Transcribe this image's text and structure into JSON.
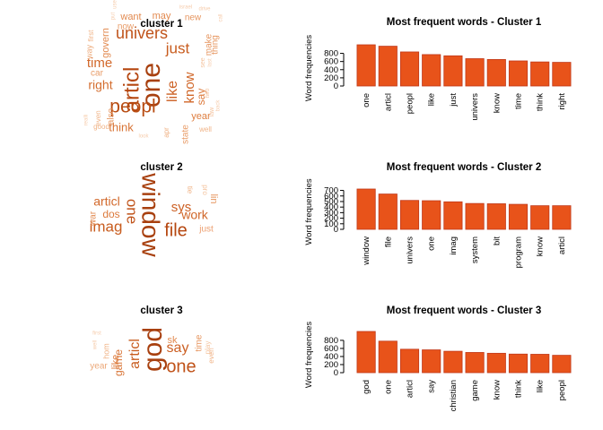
{
  "chart_data": [
    {
      "type": "wordcloud",
      "title": "cluster 1",
      "words": [
        {
          "text": "one",
          "size": 30,
          "color": "#a8400f",
          "rot": -90
        },
        {
          "text": "articl",
          "size": 24,
          "color": "#b5460f",
          "rot": -90
        },
        {
          "text": "peopl",
          "size": 21,
          "color": "#b84c12",
          "rot": 0
        },
        {
          "text": "univers",
          "size": 18,
          "color": "#c0531a",
          "rot": 0
        },
        {
          "text": "just",
          "size": 17,
          "color": "#c85c1e",
          "rot": 0
        },
        {
          "text": "like",
          "size": 16,
          "color": "#cc6024",
          "rot": -90
        },
        {
          "text": "know",
          "size": 15,
          "color": "#d06628",
          "rot": -90
        },
        {
          "text": "time",
          "size": 15,
          "color": "#d2692c",
          "rot": 0
        },
        {
          "text": "right",
          "size": 14,
          "color": "#d46e30",
          "rot": 0
        },
        {
          "text": "think",
          "size": 13,
          "color": "#d87436",
          "rot": 0
        },
        {
          "text": "say",
          "size": 12,
          "color": "#dc7a3c",
          "rot": -90
        },
        {
          "text": "year",
          "size": 11,
          "color": "#de7e40",
          "rot": 0
        },
        {
          "text": "govern",
          "size": 11,
          "color": "#e28a50",
          "rot": -90
        },
        {
          "text": "want",
          "size": 11,
          "color": "#e28a50",
          "rot": 0
        },
        {
          "text": "may",
          "size": 11,
          "color": "#e28a50",
          "rot": 0
        },
        {
          "text": "new",
          "size": 10,
          "color": "#e69660",
          "rot": 0
        },
        {
          "text": "make",
          "size": 10,
          "color": "#e69660",
          "rot": -90
        },
        {
          "text": "thing",
          "size": 10,
          "color": "#e69660",
          "rot": -90
        },
        {
          "text": "also",
          "size": 10,
          "color": "#e69660",
          "rot": -90
        },
        {
          "text": "car",
          "size": 10,
          "color": "#e89c68",
          "rot": 0
        },
        {
          "text": "state",
          "size": 10,
          "color": "#e89c68",
          "rot": -90
        },
        {
          "text": "now",
          "size": 10,
          "color": "#e89c68",
          "rot": 0
        },
        {
          "text": "way",
          "size": 9,
          "color": "#eca878",
          "rot": -90
        },
        {
          "text": "first",
          "size": 8,
          "color": "#f0b488",
          "rot": -90
        },
        {
          "text": "even",
          "size": 8,
          "color": "#f0b488",
          "rot": -90
        },
        {
          "text": "good",
          "size": 8,
          "color": "#f0b488",
          "rot": 0
        },
        {
          "text": "well",
          "size": 8,
          "color": "#f0b488",
          "rot": 0
        },
        {
          "text": "apr",
          "size": 8,
          "color": "#f0b488",
          "rot": -90
        },
        {
          "text": "see",
          "size": 7,
          "color": "#f4c4a0",
          "rot": -90
        },
        {
          "text": "two",
          "size": 7,
          "color": "#f4c4a0",
          "rot": -90
        },
        {
          "text": "law",
          "size": 7,
          "color": "#f4c4a0",
          "rot": -90
        },
        {
          "text": "back",
          "size": 6,
          "color": "#f6ccac",
          "rot": -90
        },
        {
          "text": "look",
          "size": 6,
          "color": "#f6ccac",
          "rot": 0
        },
        {
          "text": "realli",
          "size": 6,
          "color": "#f6ccac",
          "rot": -90
        },
        {
          "text": "israel",
          "size": 6,
          "color": "#f6ccac",
          "rot": 0
        },
        {
          "text": "put",
          "size": 6,
          "color": "#f6ccac",
          "rot": -90
        },
        {
          "text": "drive",
          "size": 6,
          "color": "#f6ccac",
          "rot": 0
        },
        {
          "text": "call",
          "size": 6,
          "color": "#f6ccac",
          "rot": -90
        },
        {
          "text": "use",
          "size": 6,
          "color": "#f6ccac",
          "rot": -90
        },
        {
          "text": "last",
          "size": 6,
          "color": "#f6ccac",
          "rot": -90
        }
      ]
    },
    {
      "type": "bar",
      "title": "Most frequent words - Cluster  1",
      "ylabel": "Word frequencies",
      "categories": [
        "one",
        "articl",
        "peopl",
        "like",
        "just",
        "univers",
        "know",
        "time",
        "think",
        "right"
      ],
      "values": [
        1010,
        975,
        835,
        770,
        740,
        670,
        650,
        615,
        590,
        580
      ],
      "yticks": [
        0,
        200,
        400,
        600,
        800
      ],
      "ylim": [
        0,
        1010
      ]
    },
    {
      "type": "wordcloud",
      "title": "cluster 2",
      "words": [
        {
          "text": "window",
          "size": 28,
          "color": "#a8400f",
          "rot": 90
        },
        {
          "text": "file",
          "size": 20,
          "color": "#b5460f",
          "rot": 0
        },
        {
          "text": "one",
          "size": 17,
          "color": "#c0531a",
          "rot": 90
        },
        {
          "text": "imag",
          "size": 17,
          "color": "#c85c1e",
          "rot": 0
        },
        {
          "text": "sys",
          "size": 15,
          "color": "#cc6024",
          "rot": 0
        },
        {
          "text": "work",
          "size": 14,
          "color": "#d06628",
          "rot": 0
        },
        {
          "text": "articl",
          "size": 14,
          "color": "#d2692c",
          "rot": 0
        },
        {
          "text": "dos",
          "size": 12,
          "color": "#dc7a3c",
          "rot": 0
        },
        {
          "text": "war",
          "size": 10,
          "color": "#e28a50",
          "rot": -90
        },
        {
          "text": "lin",
          "size": 11,
          "color": "#e69660",
          "rot": 90
        },
        {
          "text": "just",
          "size": 10,
          "color": "#ec9f70",
          "rot": 0
        },
        {
          "text": "tie",
          "size": 8,
          "color": "#f0b488",
          "rot": 90
        },
        {
          "text": "pro",
          "size": 8,
          "color": "#f4c4a0",
          "rot": 90
        }
      ]
    },
    {
      "type": "bar",
      "title": "Most frequent words - Cluster  2",
      "ylabel": "Word frequencies",
      "categories": [
        "window",
        "file",
        "univers",
        "one",
        "imag",
        "system",
        "bit",
        "program",
        "know",
        "articl"
      ],
      "values": [
        725,
        635,
        520,
        515,
        495,
        465,
        460,
        450,
        425,
        425
      ],
      "yticks": [
        0,
        100,
        200,
        300,
        400,
        500,
        600,
        700
      ],
      "ylim": [
        0,
        725
      ]
    },
    {
      "type": "wordcloud",
      "title": "cluster 3",
      "words": [
        {
          "text": "god",
          "size": 30,
          "color": "#a8400f",
          "rot": -90
        },
        {
          "text": "one",
          "size": 20,
          "color": "#c0531a",
          "rot": 0
        },
        {
          "text": "articl",
          "size": 16,
          "color": "#c85c1e",
          "rot": -90
        },
        {
          "text": "say",
          "size": 16,
          "color": "#cc6024",
          "rot": 0
        },
        {
          "text": "game",
          "size": 12,
          "color": "#d87436",
          "rot": -90
        },
        {
          "text": "like",
          "size": 11,
          "color": "#de7e40",
          "rot": -90
        },
        {
          "text": "sk",
          "size": 11,
          "color": "#e28a50",
          "rot": 0
        },
        {
          "text": "time",
          "size": 10,
          "color": "#e69660",
          "rot": -90
        },
        {
          "text": "year",
          "size": 10,
          "color": "#eca878",
          "rot": 0
        },
        {
          "text": "hom",
          "size": 9,
          "color": "#f0b488",
          "rot": -90
        },
        {
          "text": "even",
          "size": 8,
          "color": "#f0b488",
          "rot": -90
        },
        {
          "text": "play",
          "size": 8,
          "color": "#f4c4a0",
          "rot": -90
        },
        {
          "text": "first",
          "size": 6,
          "color": "#f6ccac",
          "rot": 0
        },
        {
          "text": "well",
          "size": 6,
          "color": "#f6ccac",
          "rot": -90
        }
      ]
    },
    {
      "type": "bar",
      "title": "Most frequent words - Cluster  3",
      "ylabel": "Word frequencies",
      "categories": [
        "god",
        "one",
        "articl",
        "say",
        "christian",
        "game",
        "know",
        "think",
        "like",
        "peopl"
      ],
      "values": [
        1020,
        780,
        580,
        565,
        530,
        500,
        480,
        460,
        455,
        430
      ],
      "yticks": [
        0,
        200,
        400,
        600,
        800
      ],
      "ylim": [
        0,
        1020
      ]
    }
  ],
  "colors": {
    "bar_fill": "#e8531a",
    "bar_stroke": "#c0391a"
  }
}
